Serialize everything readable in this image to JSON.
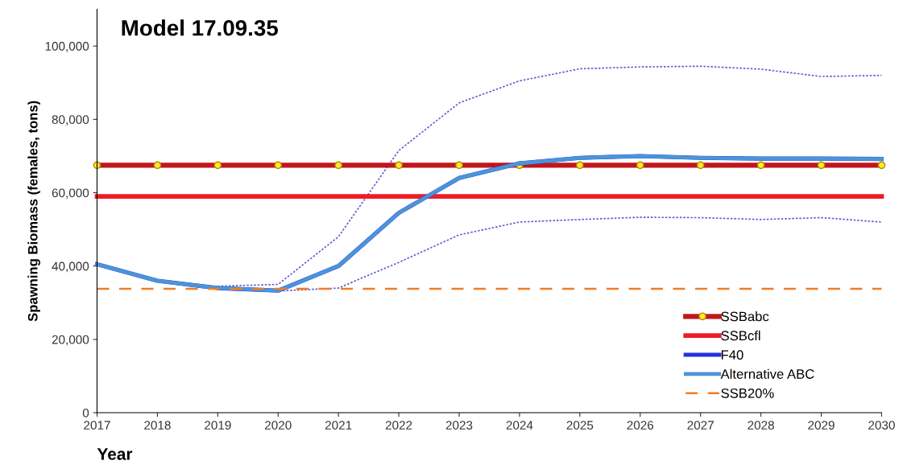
{
  "chart_data": {
    "type": "line",
    "title": "Model 17.09.35",
    "xlabel": "Year",
    "ylabel": "Spawning Biomass (females, tons)",
    "x": [
      2017,
      2018,
      2019,
      2020,
      2021,
      2022,
      2023,
      2024,
      2025,
      2026,
      2027,
      2028,
      2029,
      2030
    ],
    "xlim": [
      2017,
      2030
    ],
    "xticks": [
      2017,
      2018,
      2019,
      2020,
      2021,
      2022,
      2023,
      2024,
      2025,
      2026,
      2027,
      2028,
      2029,
      2030
    ],
    "ylim": [
      0,
      110000
    ],
    "yticks": [
      {
        "value": 0,
        "label": "0"
      },
      {
        "value": 20000,
        "label": "20,000"
      },
      {
        "value": 40000,
        "label": "40,000"
      },
      {
        "value": 60000,
        "label": "60,000"
      },
      {
        "value": 80000,
        "label": "80,000"
      },
      {
        "value": 100000,
        "label": "100,000"
      }
    ],
    "grid": false,
    "legend": "bottom right",
    "series": [
      {
        "x": [
          2019,
          2020,
          2021,
          2022,
          2023,
          2024,
          2025,
          2026,
          2027,
          2028,
          2029,
          2030
        ],
        "color": "#5b5bd6",
        "line_style": "dotted",
        "marker": "none",
        "values": [
          34500,
          35000,
          48000,
          71500,
          84500,
          90500,
          93800,
          94300,
          94500,
          93700,
          91700,
          92000
        ]
      },
      {
        "x": [
          2019,
          2020,
          2021,
          2022,
          2023,
          2024,
          2025,
          2026,
          2027,
          2028,
          2029,
          2030
        ],
        "color": "#5b5bd6",
        "line_style": "dotted",
        "marker": "none",
        "values": [
          34000,
          33200,
          34000,
          41000,
          48500,
          52000,
          52700,
          53300,
          53200,
          52700,
          53200,
          52000
        ]
      },
      {
        "name": "SSBabc",
        "color": "#c0161c",
        "line_style": "solid",
        "marker": "circle",
        "values": [
          67500,
          67500,
          67500,
          67500,
          67500,
          67500,
          67500,
          67500,
          67500,
          67500,
          67500,
          67500,
          67500,
          67500
        ]
      },
      {
        "name": "SSBcfl",
        "color": "#ee1c24",
        "line_style": "solid",
        "marker": "none",
        "values": [
          59000,
          59000,
          59000,
          59000,
          59000,
          59000,
          59000,
          59000,
          59000,
          59000,
          59000,
          59000,
          59000,
          59000
        ]
      },
      {
        "name": "F40",
        "color": "#2233dd",
        "line_style": "solid",
        "marker": "none",
        "values": [
          40500,
          36000,
          34000,
          33300,
          40000,
          54500,
          64000,
          68000,
          69500,
          70000,
          69500,
          69300,
          69300,
          69200
        ]
      },
      {
        "name": "Alternative ABC",
        "color": "#4a95d8",
        "line_style": "solid",
        "marker": "none",
        "values": [
          40500,
          36000,
          34000,
          33300,
          40000,
          54500,
          64000,
          68000,
          69500,
          70000,
          69500,
          69300,
          69300,
          69200
        ]
      },
      {
        "name": "SSB20%",
        "color": "#f07c28",
        "line_style": "dashed",
        "marker": "none",
        "values": [
          33800,
          33800,
          33800,
          33800,
          33800,
          33800,
          33800,
          33800,
          33800,
          33800,
          33800,
          33800,
          33800,
          33800
        ]
      }
    ]
  }
}
